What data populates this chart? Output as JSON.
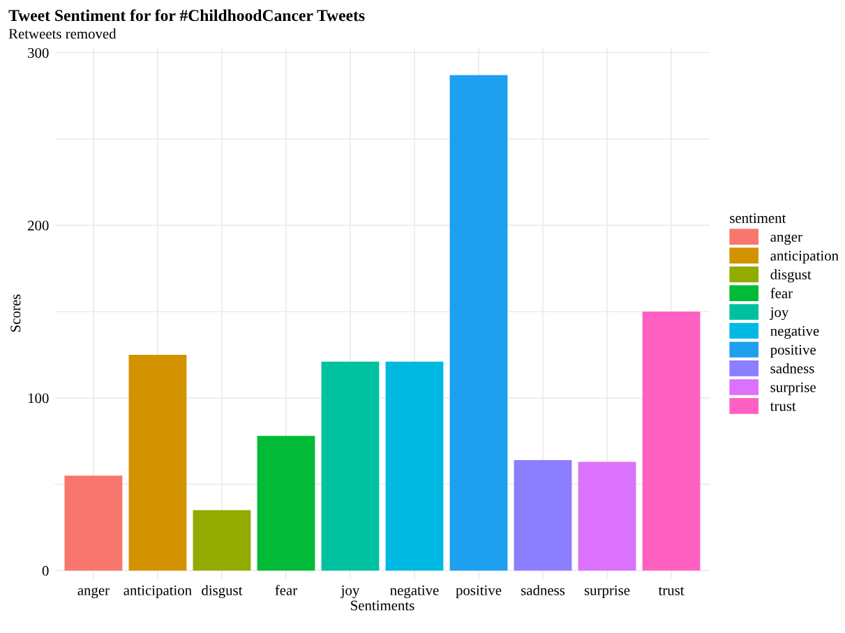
{
  "chart_data": {
    "type": "bar",
    "title": "Tweet Sentiment for for #ChildhoodCancer Tweets",
    "subtitle": "Retweets removed",
    "xlabel": "Sentiments",
    "ylabel": "Scores",
    "legend_title": "sentiment",
    "categories": [
      "anger",
      "anticipation",
      "disgust",
      "fear",
      "joy",
      "negative",
      "positive",
      "sadness",
      "surprise",
      "trust"
    ],
    "series": [
      {
        "name": "anger",
        "color": "#f8766d",
        "values": [
          55,
          null,
          null,
          null,
          null,
          null,
          null,
          null,
          null,
          null
        ]
      },
      {
        "name": "anticipation",
        "color": "#d39200",
        "values": [
          null,
          125,
          null,
          null,
          null,
          null,
          null,
          null,
          null,
          null
        ]
      },
      {
        "name": "disgust",
        "color": "#93aa00",
        "values": [
          null,
          null,
          35,
          null,
          null,
          null,
          null,
          null,
          null,
          null
        ]
      },
      {
        "name": "fear",
        "color": "#00ba38",
        "values": [
          null,
          null,
          null,
          78,
          null,
          null,
          null,
          null,
          null,
          null
        ]
      },
      {
        "name": "joy",
        "color": "#00c19f",
        "values": [
          null,
          null,
          null,
          null,
          121,
          null,
          null,
          null,
          null,
          null
        ]
      },
      {
        "name": "negative",
        "color": "#00b9e3",
        "values": [
          null,
          null,
          null,
          null,
          null,
          121,
          null,
          null,
          null,
          null
        ]
      },
      {
        "name": "positive",
        "color": "#1f9ff0",
        "values": [
          null,
          null,
          null,
          null,
          null,
          null,
          287,
          null,
          null,
          null
        ]
      },
      {
        "name": "sadness",
        "color": "#8b7eff",
        "values": [
          null,
          null,
          null,
          null,
          null,
          null,
          null,
          64,
          null,
          null
        ]
      },
      {
        "name": "surprise",
        "color": "#db72fb",
        "values": [
          null,
          null,
          null,
          null,
          null,
          null,
          null,
          null,
          63,
          null
        ]
      },
      {
        "name": "trust",
        "color": "#ff61c3",
        "values": [
          null,
          null,
          null,
          null,
          null,
          null,
          null,
          null,
          null,
          150
        ]
      }
    ],
    "ylim": [
      -5,
      303
    ],
    "yticks": [
      0,
      {
        "value": 50,
        "label": null
      },
      100,
      {
        "value": 150,
        "label": null
      },
      200,
      {
        "value": 250,
        "label": null
      },
      300
    ],
    "grid": true,
    "legend": "right"
  }
}
